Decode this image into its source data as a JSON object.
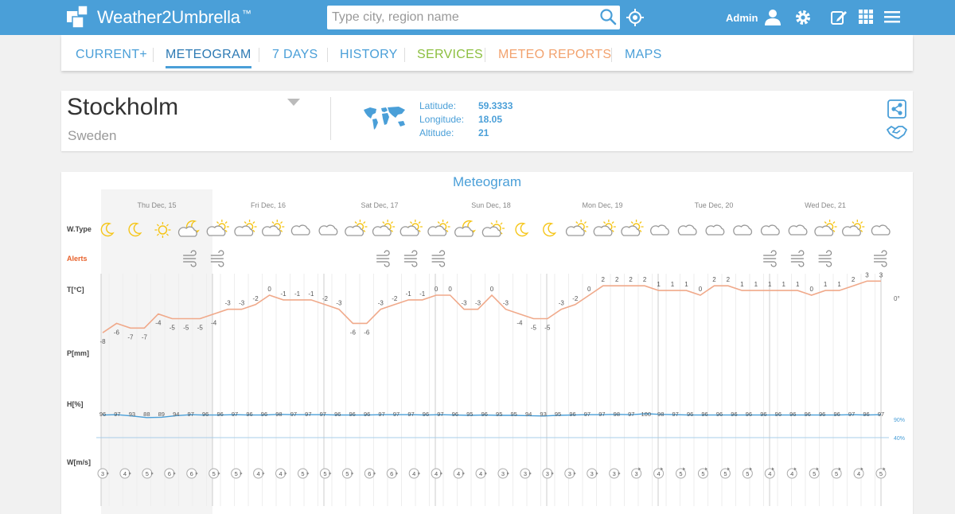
{
  "header": {
    "logo_text": "Weather2Umbrella",
    "logo_tm": "™",
    "search_placeholder": "Type city, region name",
    "admin_label": "Admin",
    "icons": [
      "search-icon",
      "locate-icon",
      "user-icon",
      "gear-icon",
      "edit-icon",
      "grid-icon",
      "menu-icon"
    ],
    "brand_color": "#4a9fd8"
  },
  "tabs": [
    {
      "label": "CURRENT+",
      "active": false,
      "color": "#4a9fd8"
    },
    {
      "label": "METEOGRAM",
      "active": true,
      "color": "#2d7ab4"
    },
    {
      "label": "7 DAYS",
      "active": false,
      "color": "#4a9fd8"
    },
    {
      "label": "HISTORY",
      "active": false,
      "color": "#4a9fd8"
    },
    {
      "label": "SERVICES",
      "active": false,
      "color": "#8cbf3f"
    },
    {
      "label": "METEO REPORTS",
      "active": false,
      "color": "#f2a26e"
    },
    {
      "label": "MAPS",
      "active": false,
      "color": "#4a9fd8"
    }
  ],
  "location": {
    "city": "Stockholm",
    "country": "Sweden",
    "latitude_label": "Latitude:",
    "latitude": "59.3333",
    "longitude_label": "Longitude:",
    "longitude": "18.05",
    "altitude_label": "Altitude:",
    "altitude": "21"
  },
  "meteogram": {
    "title": "Meteogram",
    "days": [
      "Thu Dec, 15",
      "Fri Dec, 16",
      "Sat Dec, 17",
      "Sun Dec, 18",
      "Mon Dec, 19",
      "Tue Dec, 20",
      "Wed Dec, 21"
    ],
    "row_labels": {
      "wtype": "W.Type",
      "alerts": "Alerts",
      "temp": "T[°C]",
      "precip": "P[mm]",
      "humidity": "H[%]",
      "wind": "W[m/s]"
    },
    "temp_ref_label": "0°",
    "humidity_ref_labels": [
      "90%",
      "40%"
    ],
    "weather_types": [
      "moon",
      "moon",
      "sun",
      "moon-cloud",
      "cloud-sun",
      "cloud-sun",
      "cloud-sun",
      "cloud",
      "cloud",
      "cloud-sun",
      "cloud-sun",
      "cloud-sun",
      "cloud-sun",
      "moon-cloud",
      "sun-cloud",
      "moon",
      "moon",
      "cloud-sun",
      "cloud-sun",
      "cloud-sun",
      "cloud",
      "cloud",
      "cloud",
      "cloud",
      "cloud",
      "cloud",
      "cloud-sun",
      "cloud-sun",
      "cloud"
    ],
    "alerts": [
      "",
      "",
      "",
      "wind",
      "wind",
      "",
      "",
      "",
      "",
      "",
      "wind",
      "wind",
      "wind",
      "",
      "",
      "",
      "",
      "",
      "",
      "",
      "",
      "",
      "",
      "",
      "wind",
      "wind",
      "wind",
      "",
      "wind"
    ],
    "temperatures": [
      -8,
      -6,
      -7,
      -7,
      -4,
      -5,
      -5,
      -5,
      -4,
      -3,
      -3,
      -2,
      0,
      -1,
      -1,
      -1,
      -2,
      -3,
      -6,
      -6,
      -3,
      -2,
      -1,
      -1,
      0,
      0,
      -3,
      -3,
      0,
      -3,
      -4,
      -5,
      -5,
      -3,
      -2,
      0,
      2,
      2,
      2,
      2,
      1,
      1,
      1,
      0,
      2,
      2,
      1,
      1,
      1,
      1,
      1,
      0,
      1,
      1,
      2,
      3,
      3
    ],
    "humidity": [
      96,
      97,
      93,
      88,
      89,
      94,
      97,
      96,
      96,
      97,
      96,
      96,
      98,
      97,
      97,
      97,
      96,
      96,
      96,
      97,
      97,
      97,
      96,
      97,
      96,
      95,
      96,
      95,
      95,
      94,
      93,
      95,
      96,
      97,
      97,
      98,
      97,
      100,
      98,
      97,
      96,
      96,
      96,
      96,
      96,
      96,
      96,
      96,
      96,
      96,
      96,
      97,
      96,
      97
    ],
    "wind": [
      3,
      4,
      5,
      6,
      6,
      5,
      5,
      4,
      4,
      5,
      5,
      5,
      6,
      6,
      4,
      4,
      4,
      4,
      3,
      3,
      3,
      3,
      3,
      3,
      3,
      4,
      5,
      5,
      5,
      5,
      4,
      4,
      5,
      5,
      4,
      5
    ]
  }
}
